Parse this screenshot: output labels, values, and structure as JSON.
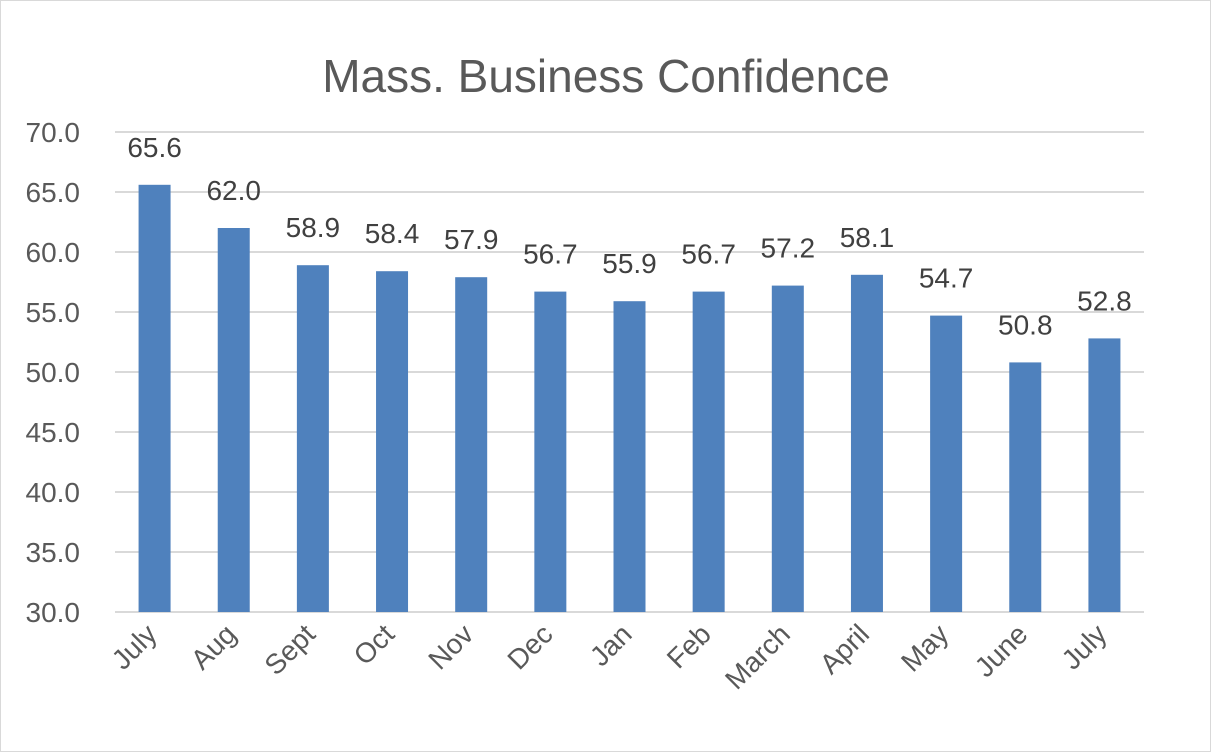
{
  "chart_data": {
    "type": "bar",
    "title": "Mass. Business  Confidence",
    "categories": [
      "July",
      "Aug",
      "Sept",
      "Oct",
      "Nov",
      "Dec",
      "Jan",
      "Feb",
      "March",
      "April",
      "May",
      "June",
      "July"
    ],
    "values": [
      65.6,
      62.0,
      58.9,
      58.4,
      57.9,
      56.7,
      55.9,
      56.7,
      57.2,
      58.1,
      54.7,
      50.8,
      52.8
    ],
    "data_labels": [
      "65.6",
      "62.0",
      "58.9",
      "58.4",
      "57.9",
      "56.7",
      "55.9",
      "56.7",
      "57.2",
      "58.1",
      "54.7",
      "50.8",
      "52.8"
    ],
    "y_ticks": [
      "30.0",
      "35.0",
      "40.0",
      "45.0",
      "50.0",
      "55.0",
      "60.0",
      "65.0",
      "70.0"
    ],
    "ylim": [
      30,
      70
    ],
    "xlabel": "",
    "ylabel": "",
    "grid": true,
    "legend": "none",
    "bar_color": "#4f81bd"
  }
}
